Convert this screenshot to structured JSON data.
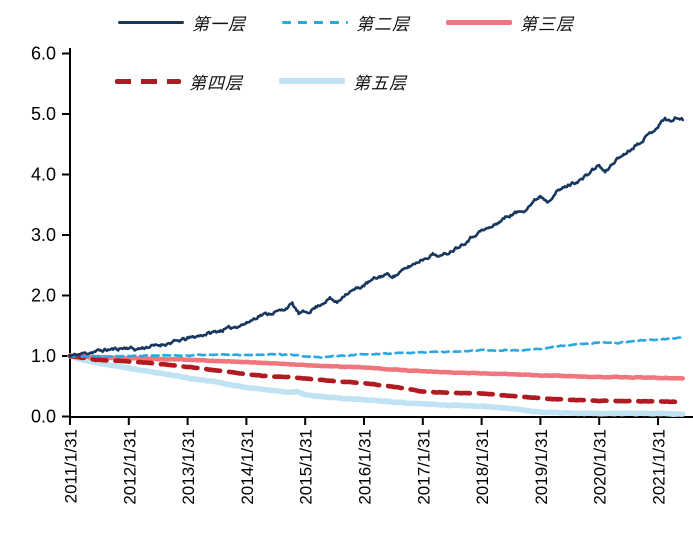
{
  "chart_data": {
    "type": "line",
    "title": "",
    "grid": false,
    "legend_position": "top",
    "x_axis": {
      "tick_labels": [
        "2011/1/31",
        "2012/1/31",
        "2013/1/31",
        "2014/1/31",
        "2015/1/31",
        "2016/1/31",
        "2017/1/31",
        "2018/1/31",
        "2019/1/31",
        "2020/1/31",
        "2021/1/31"
      ],
      "label_rotation_deg": -90
    },
    "y_axis": {
      "tick_labels": [
        "6.0",
        "5.0",
        "4.0",
        "3.0",
        "2.0",
        "1.0",
        "0.0"
      ],
      "min": 0,
      "max": 6
    },
    "axis_color": "#000000",
    "series": [
      {
        "name": "第一层",
        "color": "#17375E",
        "style": "solid",
        "width": 2.6,
        "noise": 0.022,
        "seed": 11,
        "points": [
          [
            2011.08,
            1.0
          ],
          [
            2011.3,
            1.04
          ],
          [
            2011.6,
            1.09
          ],
          [
            2011.9,
            1.12
          ],
          [
            2012.08,
            1.14
          ],
          [
            2012.2,
            1.11
          ],
          [
            2012.4,
            1.15
          ],
          [
            2012.6,
            1.18
          ],
          [
            2012.8,
            1.22
          ],
          [
            2013.08,
            1.29
          ],
          [
            2013.3,
            1.34
          ],
          [
            2013.55,
            1.4
          ],
          [
            2013.8,
            1.46
          ],
          [
            2014.08,
            1.54
          ],
          [
            2014.3,
            1.67
          ],
          [
            2014.55,
            1.72
          ],
          [
            2014.7,
            1.76
          ],
          [
            2014.86,
            1.86
          ],
          [
            2014.97,
            1.7
          ],
          [
            2015.15,
            1.74
          ],
          [
            2015.35,
            1.86
          ],
          [
            2015.5,
            1.95
          ],
          [
            2015.62,
            1.88
          ],
          [
            2015.75,
            2.02
          ],
          [
            2016.0,
            2.13
          ],
          [
            2016.08,
            2.17
          ],
          [
            2016.25,
            2.27
          ],
          [
            2016.45,
            2.35
          ],
          [
            2016.6,
            2.32
          ],
          [
            2016.8,
            2.45
          ],
          [
            2017.0,
            2.56
          ],
          [
            2017.08,
            2.6
          ],
          [
            2017.25,
            2.68
          ],
          [
            2017.4,
            2.65
          ],
          [
            2017.55,
            2.73
          ],
          [
            2017.8,
            2.88
          ],
          [
            2018.0,
            3.03
          ],
          [
            2018.08,
            3.07
          ],
          [
            2018.25,
            3.13
          ],
          [
            2018.5,
            3.3
          ],
          [
            2018.65,
            3.36
          ],
          [
            2018.8,
            3.41
          ],
          [
            2019.0,
            3.58
          ],
          [
            2019.08,
            3.65
          ],
          [
            2019.2,
            3.56
          ],
          [
            2019.35,
            3.71
          ],
          [
            2019.55,
            3.82
          ],
          [
            2019.8,
            3.93
          ],
          [
            2020.0,
            4.1
          ],
          [
            2020.08,
            4.15
          ],
          [
            2020.18,
            4.03
          ],
          [
            2020.35,
            4.23
          ],
          [
            2020.55,
            4.37
          ],
          [
            2020.75,
            4.52
          ],
          [
            2020.92,
            4.66
          ],
          [
            2021.08,
            4.8
          ],
          [
            2021.2,
            4.93
          ],
          [
            2021.3,
            4.87
          ],
          [
            2021.4,
            4.95
          ],
          [
            2021.5,
            4.9
          ]
        ]
      },
      {
        "name": "第二层",
        "color": "#29A8E3",
        "style": "dashed",
        "dash": [
          7,
          5
        ],
        "legend_dash": [
          9,
          7
        ],
        "width": 2.6,
        "noise": 0.007,
        "seed": 22,
        "points": [
          [
            2011.08,
            1.0
          ],
          [
            2011.5,
            1.0
          ],
          [
            2012.08,
            1.0
          ],
          [
            2012.5,
            1.01
          ],
          [
            2013.08,
            1.01
          ],
          [
            2013.5,
            1.02
          ],
          [
            2014.08,
            1.02
          ],
          [
            2014.5,
            1.03
          ],
          [
            2014.83,
            1.02
          ],
          [
            2015.08,
            0.99
          ],
          [
            2015.33,
            0.98
          ],
          [
            2015.58,
            1.0
          ],
          [
            2015.83,
            1.01
          ],
          [
            2016.08,
            1.03
          ],
          [
            2016.5,
            1.04
          ],
          [
            2017.08,
            1.06
          ],
          [
            2017.5,
            1.07
          ],
          [
            2018.08,
            1.09
          ],
          [
            2018.5,
            1.1
          ],
          [
            2018.75,
            1.09
          ],
          [
            2019.08,
            1.12
          ],
          [
            2019.33,
            1.16
          ],
          [
            2019.58,
            1.18
          ],
          [
            2019.83,
            1.2
          ],
          [
            2020.08,
            1.22
          ],
          [
            2020.33,
            1.21
          ],
          [
            2020.58,
            1.24
          ],
          [
            2020.83,
            1.26
          ],
          [
            2021.08,
            1.27
          ],
          [
            2021.3,
            1.29
          ],
          [
            2021.5,
            1.3
          ]
        ]
      },
      {
        "name": "第三层",
        "color": "#F0757D",
        "style": "solid",
        "width": 4.5,
        "noise": 0.004,
        "seed": 33,
        "points": [
          [
            2011.08,
            1.0
          ],
          [
            2011.5,
            0.98
          ],
          [
            2012.08,
            0.96
          ],
          [
            2012.5,
            0.95
          ],
          [
            2013.08,
            0.94
          ],
          [
            2013.5,
            0.92
          ],
          [
            2014.08,
            0.9
          ],
          [
            2014.5,
            0.88
          ],
          [
            2015.08,
            0.85
          ],
          [
            2015.5,
            0.83
          ],
          [
            2016.08,
            0.81
          ],
          [
            2016.5,
            0.78
          ],
          [
            2017.08,
            0.75
          ],
          [
            2017.5,
            0.73
          ],
          [
            2018.08,
            0.71
          ],
          [
            2018.5,
            0.7
          ],
          [
            2019.08,
            0.68
          ],
          [
            2019.5,
            0.67
          ],
          [
            2020.08,
            0.65
          ],
          [
            2020.5,
            0.65
          ],
          [
            2021.08,
            0.64
          ],
          [
            2021.5,
            0.63
          ]
        ]
      },
      {
        "name": "第四层",
        "color": "#B01B21",
        "style": "dashed",
        "dash": [
          14,
          9
        ],
        "legend_dash": [
          16,
          10
        ],
        "width": 4.6,
        "noise": 0.003,
        "seed": 44,
        "points": [
          [
            2011.08,
            1.0
          ],
          [
            2011.5,
            0.94
          ],
          [
            2012.08,
            0.91
          ],
          [
            2012.5,
            0.88
          ],
          [
            2013.08,
            0.82
          ],
          [
            2013.5,
            0.77
          ],
          [
            2014.08,
            0.7
          ],
          [
            2014.5,
            0.66
          ],
          [
            2014.83,
            0.65
          ],
          [
            2015.08,
            0.63
          ],
          [
            2015.5,
            0.59
          ],
          [
            2016.08,
            0.55
          ],
          [
            2016.35,
            0.52
          ],
          [
            2016.6,
            0.49
          ],
          [
            2016.85,
            0.45
          ],
          [
            2017.08,
            0.41
          ],
          [
            2017.35,
            0.4
          ],
          [
            2017.6,
            0.39
          ],
          [
            2018.08,
            0.38
          ],
          [
            2018.35,
            0.36
          ],
          [
            2018.6,
            0.34
          ],
          [
            2018.85,
            0.32
          ],
          [
            2019.08,
            0.3
          ],
          [
            2019.5,
            0.28
          ],
          [
            2020.08,
            0.26
          ],
          [
            2020.5,
            0.255
          ],
          [
            2021.08,
            0.25
          ],
          [
            2021.5,
            0.24
          ]
        ]
      },
      {
        "name": "第五层",
        "color": "#BFE3F2",
        "style": "solid",
        "width": 5.5,
        "noise": 0.005,
        "seed": 55,
        "points": [
          [
            2011.08,
            1.0
          ],
          [
            2011.25,
            0.95
          ],
          [
            2011.5,
            0.9
          ],
          [
            2011.75,
            0.85
          ],
          [
            2012.08,
            0.8
          ],
          [
            2012.33,
            0.76
          ],
          [
            2012.58,
            0.72
          ],
          [
            2012.83,
            0.68
          ],
          [
            2013.08,
            0.64
          ],
          [
            2013.33,
            0.6
          ],
          [
            2013.58,
            0.57
          ],
          [
            2013.83,
            0.52
          ],
          [
            2014.08,
            0.48
          ],
          [
            2014.33,
            0.45
          ],
          [
            2014.58,
            0.43
          ],
          [
            2014.83,
            0.4
          ],
          [
            2014.95,
            0.41
          ],
          [
            2015.08,
            0.36
          ],
          [
            2015.33,
            0.33
          ],
          [
            2015.58,
            0.31
          ],
          [
            2015.83,
            0.29
          ],
          [
            2016.08,
            0.28
          ],
          [
            2016.33,
            0.26
          ],
          [
            2016.58,
            0.24
          ],
          [
            2016.83,
            0.22
          ],
          [
            2017.08,
            0.21
          ],
          [
            2017.5,
            0.19
          ],
          [
            2018.08,
            0.17
          ],
          [
            2018.33,
            0.15
          ],
          [
            2018.58,
            0.13
          ],
          [
            2018.75,
            0.12
          ],
          [
            2018.9,
            0.09
          ],
          [
            2019.08,
            0.07
          ],
          [
            2019.5,
            0.06
          ],
          [
            2020.08,
            0.05
          ],
          [
            2020.5,
            0.05
          ],
          [
            2021.08,
            0.05
          ],
          [
            2021.5,
            0.04
          ]
        ]
      }
    ]
  }
}
